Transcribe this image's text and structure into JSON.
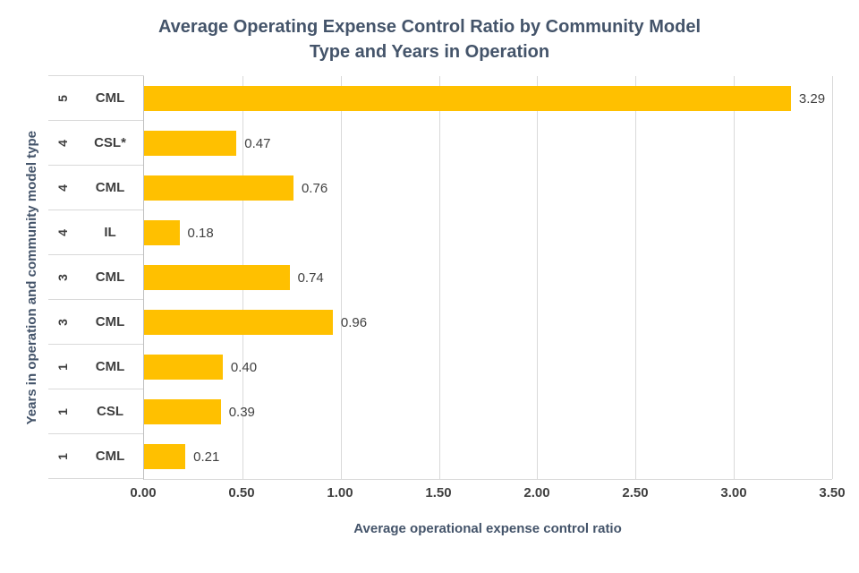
{
  "title_lines": [
    "Average Operating Expense Control Ratio by Community Model",
    "Type and Years in Operation"
  ],
  "chart_data": {
    "type": "bar",
    "orientation": "horizontal",
    "title": "Average Operating Expense Control Ratio by Community Model Type and Years in Operation",
    "xlabel": "Average operational expense control ratio",
    "ylabel": "Years in operation and community model type",
    "xlim": [
      0,
      3.5
    ],
    "xticks": [
      0,
      0.5,
      1,
      1.5,
      2,
      2.5,
      3,
      3.5
    ],
    "xtick_labels": [
      "0.00",
      "0.50",
      "1.00",
      "1.50",
      "2.00",
      "2.50",
      "3.00",
      "3.50"
    ],
    "grid": true,
    "bar_color": "#FFC000",
    "rows": [
      {
        "years": "5",
        "model": "CML",
        "value": 3.29,
        "label": "3.29"
      },
      {
        "years": "4",
        "model": "CSL*",
        "value": 0.47,
        "label": "0.47"
      },
      {
        "years": "4",
        "model": "CML",
        "value": 0.76,
        "label": "0.76"
      },
      {
        "years": "4",
        "model": "IL",
        "value": 0.18,
        "label": "0.18"
      },
      {
        "years": "3",
        "model": "CML",
        "value": 0.74,
        "label": "0.74"
      },
      {
        "years": "3",
        "model": "CML",
        "value": 0.96,
        "label": "0.96"
      },
      {
        "years": "1",
        "model": "CML",
        "value": 0.4,
        "label": "0.40"
      },
      {
        "years": "1",
        "model": "CSL",
        "value": 0.39,
        "label": "0.39"
      },
      {
        "years": "1",
        "model": "CML",
        "value": 0.21,
        "label": "0.21"
      }
    ]
  },
  "colors": {
    "bar": "#FFC000",
    "title_text": "#44546A",
    "axis_text": "#404040",
    "gridline": "#D9D9D9"
  }
}
